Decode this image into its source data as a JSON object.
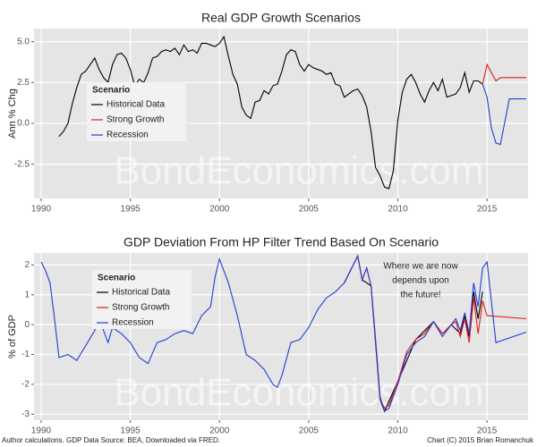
{
  "chart_data": [
    {
      "type": "line",
      "title": "Real GDP Growth Scenarios",
      "y_label": "Ann % Chg",
      "xlim": [
        1989.6,
        2017.3
      ],
      "xticks": [
        1990,
        1995,
        2000,
        2005,
        2010,
        2015
      ],
      "ylim": [
        -4.6,
        5.8
      ],
      "yticks": [
        -2.5,
        {
          "value": 0,
          "label": "0.0"
        },
        2.5,
        {
          "value": 5,
          "label": "5.0"
        }
      ],
      "grid": true,
      "legend_title": "Scenario",
      "legend_position": "upper left",
      "watermark": "BondEconomics.com",
      "series": [
        {
          "name": "Historical Data",
          "color": "#000000",
          "x": [
            1991.0,
            1991.25,
            1991.5,
            1991.75,
            1992.0,
            1992.25,
            1992.5,
            1992.75,
            1993.0,
            1993.25,
            1993.5,
            1993.75,
            1994.0,
            1994.25,
            1994.5,
            1994.75,
            1995.0,
            1995.25,
            1995.5,
            1995.75,
            1996.0,
            1996.25,
            1996.5,
            1996.75,
            1997.0,
            1997.25,
            1997.5,
            1997.75,
            1998.0,
            1998.25,
            1998.5,
            1998.75,
            1999.0,
            1999.25,
            1999.5,
            1999.75,
            2000.0,
            2000.25,
            2000.5,
            2000.75,
            2001.0,
            2001.25,
            2001.5,
            2001.75,
            2002.0,
            2002.25,
            2002.5,
            2002.75,
            2003.0,
            2003.25,
            2003.5,
            2003.75,
            2004.0,
            2004.25,
            2004.5,
            2004.75,
            2005.0,
            2005.25,
            2005.5,
            2005.75,
            2006.0,
            2006.25,
            2006.5,
            2006.75,
            2007.0,
            2007.25,
            2007.5,
            2007.75,
            2008.0,
            2008.25,
            2008.5,
            2008.75,
            2009.0,
            2009.25,
            2009.5,
            2009.75,
            2010.0,
            2010.25,
            2010.5,
            2010.75,
            2011.0,
            2011.25,
            2011.5,
            2011.75,
            2012.0,
            2012.25,
            2012.5,
            2012.75,
            2013.0,
            2013.25,
            2013.5,
            2013.75,
            2014.0,
            2014.25,
            2014.5,
            2014.75
          ],
          "values": [
            -0.8,
            -0.5,
            0,
            1.2,
            2.2,
            3.0,
            3.2,
            3.6,
            4.0,
            3.3,
            2.8,
            2.5,
            3.6,
            4.2,
            4.3,
            4.0,
            3.3,
            2.3,
            2.7,
            2.5,
            3.1,
            4.0,
            4.1,
            4.4,
            4.5,
            4.4,
            4.6,
            4.2,
            4.8,
            4.4,
            4.5,
            4.3,
            4.9,
            4.9,
            4.8,
            4.7,
            4.9,
            5.3,
            4.1,
            3.0,
            2.4,
            1.0,
            0.5,
            0.3,
            1.3,
            1.4,
            2.0,
            1.8,
            2.3,
            2.4,
            3.2,
            4.2,
            4.5,
            4.4,
            3.6,
            3.2,
            3.6,
            3.4,
            3.3,
            3.2,
            3.0,
            3.1,
            2.4,
            2.3,
            1.6,
            1.8,
            2.0,
            2.1,
            1.7,
            1.0,
            -0.5,
            -2.7,
            -3.2,
            -3.9,
            -4.0,
            -2.9,
            0.2,
            1.9,
            2.7,
            3.0,
            2.5,
            1.8,
            1.3,
            2.0,
            2.5,
            2.0,
            2.7,
            1.6,
            1.7,
            1.8,
            2.2,
            3.1,
            1.9,
            2.6,
            2.6,
            2.4
          ]
        },
        {
          "name": "Strong Growth",
          "color": "#e41a1c",
          "x": [
            2014.75,
            2015.0,
            2015.5,
            2015.75,
            2017.2
          ],
          "values": [
            2.4,
            3.6,
            2.6,
            2.8,
            2.8
          ]
        },
        {
          "name": "Recession",
          "color": "#1f3fd6",
          "x": [
            2014.75,
            2015.0,
            2015.25,
            2015.5,
            2015.75,
            2016.25,
            2017.2
          ],
          "values": [
            2.4,
            1.6,
            -0.3,
            -1.2,
            -1.3,
            1.5,
            1.5
          ]
        }
      ]
    },
    {
      "type": "line",
      "title": "GDP Deviation From HP Filter Trend Based On Scenario",
      "y_label": "% of GDP",
      "xlim": [
        1989.6,
        2017.3
      ],
      "xticks": [
        1990,
        1995,
        2000,
        2005,
        2010,
        2015
      ],
      "ylim": [
        -3.2,
        2.4
      ],
      "yticks": [
        -3,
        -2,
        -1,
        0,
        1,
        2
      ],
      "grid": true,
      "legend_title": "Scenario",
      "legend_position": "upper left",
      "watermark": "BondEconomics.com",
      "annotation": [
        "Where we are now",
        "depends upon",
        "the future!"
      ],
      "series": [
        {
          "name": "Historical Data",
          "color": "#000000",
          "x": [
            2007.0,
            2007.75,
            2008.0,
            2008.5,
            2009.0,
            2009.25,
            2010.0,
            2011.0,
            2012.0,
            2012.5,
            2013.0,
            2013.5,
            2013.75,
            2014.0,
            2014.25,
            2014.5,
            2014.75
          ],
          "values": [
            1.4,
            2.3,
            1.5,
            1.3,
            -2.5,
            -2.9,
            -1.9,
            -0.5,
            0.1,
            -0.3,
            0.0,
            -0.3,
            0.3,
            -0.4,
            1.1,
            0.2,
            1.1
          ]
        },
        {
          "name": "Strong Growth",
          "color": "#e41a1c",
          "x": [
            2007.0,
            2007.5,
            2007.75,
            2008.0,
            2008.25,
            2008.5,
            2008.75,
            2009.0,
            2009.25,
            2009.5,
            2010.0,
            2010.5,
            2011.0,
            2011.5,
            2012.0,
            2012.5,
            2013.0,
            2013.25,
            2013.5,
            2013.75,
            2014.0,
            2014.25,
            2014.5,
            2014.75,
            2015.0,
            2017.2
          ],
          "values": [
            1.4,
            2.0,
            2.3,
            1.5,
            1.9,
            1.3,
            -0.5,
            -2.5,
            -2.8,
            -2.7,
            -1.9,
            -0.9,
            -0.5,
            -0.3,
            0.1,
            -0.3,
            0.0,
            0.1,
            -0.4,
            0.2,
            -0.6,
            0.9,
            -0.3,
            0.8,
            0.3,
            0.2
          ]
        },
        {
          "name": "Recession",
          "color": "#1f3fd6",
          "x": [
            1990.0,
            1990.25,
            1990.5,
            1990.75,
            1991.0,
            1991.5,
            1992.0,
            1992.5,
            1993.0,
            1993.25,
            1993.5,
            1993.75,
            1994.0,
            1994.5,
            1995.0,
            1995.5,
            1996.0,
            1996.5,
            1997.0,
            1997.5,
            1998.0,
            1998.5,
            1999.0,
            1999.5,
            1999.75,
            2000.0,
            2000.5,
            2001.0,
            2001.5,
            2002.0,
            2002.5,
            2003.0,
            2003.25,
            2003.5,
            2004.0,
            2004.5,
            2005.0,
            2005.5,
            2006.0,
            2006.5,
            2007.0,
            2007.5,
            2007.75,
            2008.0,
            2008.25,
            2008.5,
            2008.75,
            2009.0,
            2009.25,
            2009.5,
            2010.0,
            2010.5,
            2011.0,
            2011.5,
            2012.0,
            2012.5,
            2013.0,
            2013.25,
            2013.5,
            2013.75,
            2014.0,
            2014.25,
            2014.5,
            2014.75,
            2015.0,
            2015.5,
            2017.2
          ],
          "values": [
            2.1,
            1.8,
            1.4,
            0.2,
            -1.1,
            -1.0,
            -1.2,
            -0.7,
            -0.2,
            0.2,
            -0.2,
            -0.6,
            -0.1,
            -0.3,
            -0.6,
            -1.1,
            -1.3,
            -0.6,
            -0.5,
            -0.3,
            -0.2,
            -0.3,
            0.3,
            0.6,
            1.6,
            2.2,
            1.4,
            0.3,
            -1.0,
            -1.2,
            -1.5,
            -2.0,
            -2.1,
            -1.7,
            -0.6,
            -0.5,
            -0.1,
            0.5,
            0.9,
            1.1,
            1.4,
            2.0,
            2.3,
            1.5,
            1.9,
            1.3,
            -0.5,
            -2.4,
            -2.9,
            -2.8,
            -2.0,
            -1.0,
            -0.6,
            -0.4,
            0.1,
            -0.4,
            0.0,
            0.2,
            -0.2,
            0.4,
            -0.3,
            1.4,
            0.6,
            1.9,
            2.1,
            -0.6,
            -0.25
          ]
        }
      ]
    }
  ],
  "footer": {
    "left": "Author calculations. GDP Data Source: BEA, Downloaded via FRED.",
    "right": "Chart (C) 2015 Brian Romanchuk"
  }
}
